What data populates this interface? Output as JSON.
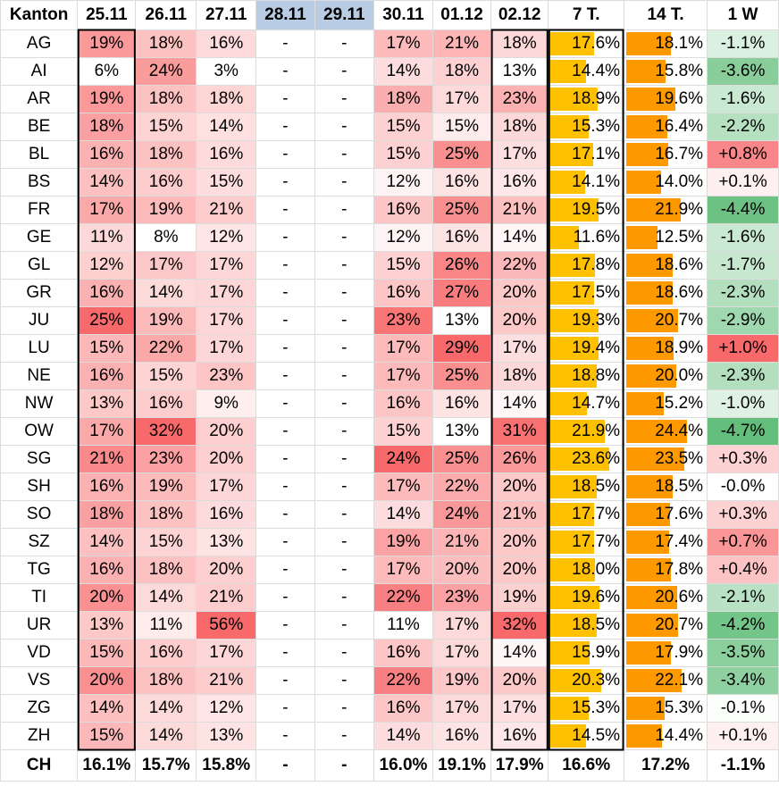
{
  "header": {
    "kanton": "Kanton",
    "dates": [
      "25.11",
      "26.11",
      "27.11",
      "28.11",
      "29.11",
      "30.11",
      "01.12",
      "02.12"
    ],
    "avg7": "7 T.",
    "avg14": "14 T.",
    "change": "1 W"
  },
  "weekend_dates": [
    "28.11",
    "29.11"
  ],
  "missing_symbol": "-",
  "colors": {
    "heat_max": "#f8696b",
    "heat_min": "#ffffff",
    "bar7": "#ffc000",
    "bar14": "#ff9900",
    "change_pos": "#f8696b",
    "change_neg": "#63be7b",
    "weekend_header": "#b8cce4"
  },
  "chart_data": {
    "type": "table",
    "title": "",
    "columns": [
      "Kanton",
      "25.11",
      "26.11",
      "27.11",
      "28.11",
      "29.11",
      "30.11",
      "01.12",
      "02.12",
      "7 T.",
      "14 T.",
      "1 W"
    ],
    "rows": [
      {
        "kanton": "AG",
        "daily": [
          "19%",
          "18%",
          "16%",
          "-",
          "-",
          "17%",
          "21%",
          "18%"
        ],
        "avg7": "17.6%",
        "avg14": "18.1%",
        "change": "-1.1%"
      },
      {
        "kanton": "AI",
        "daily": [
          "6%",
          "24%",
          "3%",
          "-",
          "-",
          "14%",
          "18%",
          "13%"
        ],
        "avg7": "14.4%",
        "avg14": "15.8%",
        "change": "-3.6%"
      },
      {
        "kanton": "AR",
        "daily": [
          "19%",
          "18%",
          "18%",
          "-",
          "-",
          "18%",
          "17%",
          "23%"
        ],
        "avg7": "18.9%",
        "avg14": "19.6%",
        "change": "-1.6%"
      },
      {
        "kanton": "BE",
        "daily": [
          "18%",
          "15%",
          "14%",
          "-",
          "-",
          "15%",
          "15%",
          "18%"
        ],
        "avg7": "15.3%",
        "avg14": "16.4%",
        "change": "-2.2%"
      },
      {
        "kanton": "BL",
        "daily": [
          "16%",
          "18%",
          "16%",
          "-",
          "-",
          "15%",
          "25%",
          "17%"
        ],
        "avg7": "17.1%",
        "avg14": "16.7%",
        "change": "+0.8%"
      },
      {
        "kanton": "BS",
        "daily": [
          "14%",
          "16%",
          "15%",
          "-",
          "-",
          "12%",
          "16%",
          "16%"
        ],
        "avg7": "14.1%",
        "avg14": "14.0%",
        "change": "+0.1%"
      },
      {
        "kanton": "FR",
        "daily": [
          "17%",
          "19%",
          "21%",
          "-",
          "-",
          "16%",
          "25%",
          "21%"
        ],
        "avg7": "19.5%",
        "avg14": "21.9%",
        "change": "-4.4%"
      },
      {
        "kanton": "GE",
        "daily": [
          "11%",
          "8%",
          "12%",
          "-",
          "-",
          "12%",
          "16%",
          "14%"
        ],
        "avg7": "11.6%",
        "avg14": "12.5%",
        "change": "-1.6%"
      },
      {
        "kanton": "GL",
        "daily": [
          "12%",
          "17%",
          "17%",
          "-",
          "-",
          "15%",
          "26%",
          "22%"
        ],
        "avg7": "17.8%",
        "avg14": "18.6%",
        "change": "-1.7%"
      },
      {
        "kanton": "GR",
        "daily": [
          "16%",
          "14%",
          "17%",
          "-",
          "-",
          "16%",
          "27%",
          "20%"
        ],
        "avg7": "17.5%",
        "avg14": "18.6%",
        "change": "-2.3%"
      },
      {
        "kanton": "JU",
        "daily": [
          "25%",
          "19%",
          "17%",
          "-",
          "-",
          "23%",
          "13%",
          "20%"
        ],
        "avg7": "19.3%",
        "avg14": "20.7%",
        "change": "-2.9%"
      },
      {
        "kanton": "LU",
        "daily": [
          "15%",
          "22%",
          "17%",
          "-",
          "-",
          "17%",
          "29%",
          "17%"
        ],
        "avg7": "19.4%",
        "avg14": "18.9%",
        "change": "+1.0%"
      },
      {
        "kanton": "NE",
        "daily": [
          "16%",
          "15%",
          "23%",
          "-",
          "-",
          "17%",
          "25%",
          "18%"
        ],
        "avg7": "18.8%",
        "avg14": "20.0%",
        "change": "-2.3%"
      },
      {
        "kanton": "NW",
        "daily": [
          "13%",
          "16%",
          "9%",
          "-",
          "-",
          "16%",
          "16%",
          "14%"
        ],
        "avg7": "14.7%",
        "avg14": "15.2%",
        "change": "-1.0%"
      },
      {
        "kanton": "OW",
        "daily": [
          "17%",
          "32%",
          "20%",
          "-",
          "-",
          "15%",
          "13%",
          "31%"
        ],
        "avg7": "21.9%",
        "avg14": "24.4%",
        "change": "-4.7%"
      },
      {
        "kanton": "SG",
        "daily": [
          "21%",
          "23%",
          "20%",
          "-",
          "-",
          "24%",
          "25%",
          "26%"
        ],
        "avg7": "23.6%",
        "avg14": "23.5%",
        "change": "+0.3%"
      },
      {
        "kanton": "SH",
        "daily": [
          "16%",
          "19%",
          "17%",
          "-",
          "-",
          "17%",
          "22%",
          "20%"
        ],
        "avg7": "18.5%",
        "avg14": "18.5%",
        "change": "-0.0%"
      },
      {
        "kanton": "SO",
        "daily": [
          "18%",
          "18%",
          "16%",
          "-",
          "-",
          "14%",
          "24%",
          "21%"
        ],
        "avg7": "17.7%",
        "avg14": "17.6%",
        "change": "+0.3%"
      },
      {
        "kanton": "SZ",
        "daily": [
          "14%",
          "15%",
          "13%",
          "-",
          "-",
          "19%",
          "21%",
          "20%"
        ],
        "avg7": "17.7%",
        "avg14": "17.4%",
        "change": "+0.7%"
      },
      {
        "kanton": "TG",
        "daily": [
          "16%",
          "18%",
          "20%",
          "-",
          "-",
          "17%",
          "20%",
          "20%"
        ],
        "avg7": "18.0%",
        "avg14": "17.8%",
        "change": "+0.4%"
      },
      {
        "kanton": "TI",
        "daily": [
          "20%",
          "14%",
          "21%",
          "-",
          "-",
          "22%",
          "23%",
          "19%"
        ],
        "avg7": "19.6%",
        "avg14": "20.6%",
        "change": "-2.1%"
      },
      {
        "kanton": "UR",
        "daily": [
          "13%",
          "11%",
          "56%",
          "-",
          "-",
          "11%",
          "17%",
          "32%"
        ],
        "avg7": "18.5%",
        "avg14": "20.7%",
        "change": "-4.2%"
      },
      {
        "kanton": "VD",
        "daily": [
          "15%",
          "16%",
          "17%",
          "-",
          "-",
          "16%",
          "17%",
          "14%"
        ],
        "avg7": "15.9%",
        "avg14": "17.9%",
        "change": "-3.5%"
      },
      {
        "kanton": "VS",
        "daily": [
          "20%",
          "18%",
          "21%",
          "-",
          "-",
          "22%",
          "19%",
          "20%"
        ],
        "avg7": "20.3%",
        "avg14": "22.1%",
        "change": "-3.4%"
      },
      {
        "kanton": "ZG",
        "daily": [
          "14%",
          "14%",
          "12%",
          "-",
          "-",
          "16%",
          "17%",
          "17%"
        ],
        "avg7": "15.3%",
        "avg14": "15.3%",
        "change": "-0.1%"
      },
      {
        "kanton": "ZH",
        "daily": [
          "15%",
          "14%",
          "13%",
          "-",
          "-",
          "14%",
          "16%",
          "16%"
        ],
        "avg7": "14.5%",
        "avg14": "14.4%",
        "change": "+0.1%"
      }
    ],
    "total": {
      "kanton": "CH",
      "daily": [
        "16.1%",
        "15.7%",
        "15.8%",
        "-",
        "-",
        "16.0%",
        "19.1%",
        "17.9%"
      ],
      "avg7": "16.6%",
      "avg14": "17.2%",
      "change": "-1.1%"
    }
  }
}
